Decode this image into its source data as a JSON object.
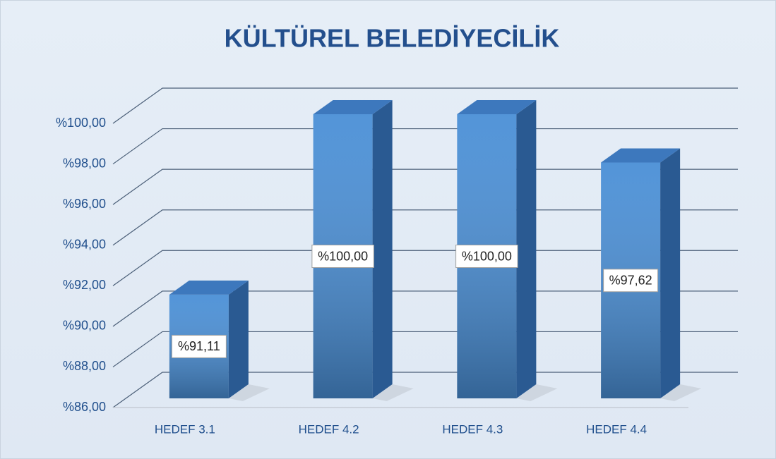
{
  "chart_data": {
    "type": "bar3d",
    "title": "KÜLTÜREL BELEDİYECİLİK",
    "categories": [
      "HEDEF 3.1",
      "HEDEF 4.2",
      "HEDEF 4.3",
      "HEDEF 4.4"
    ],
    "values": [
      91.11,
      100,
      100,
      97.62
    ],
    "value_labels": [
      "%91,11",
      "%100,00",
      "%100,00",
      "%97,62"
    ],
    "color": "#4a8fd6",
    "ylim": [
      86,
      100
    ],
    "yticks": [
      {
        "value": 86,
        "label": "%86,00"
      },
      {
        "value": 88,
        "label": "%88,00"
      },
      {
        "value": 90,
        "label": "%90,00"
      },
      {
        "value": 92,
        "label": "%92,00"
      },
      {
        "value": 94,
        "label": "%94,00"
      },
      {
        "value": 96,
        "label": "%96,00"
      },
      {
        "value": 98,
        "label": "%98,00"
      },
      {
        "value": 100,
        "label": "%100,00"
      }
    ],
    "grid": true
  }
}
